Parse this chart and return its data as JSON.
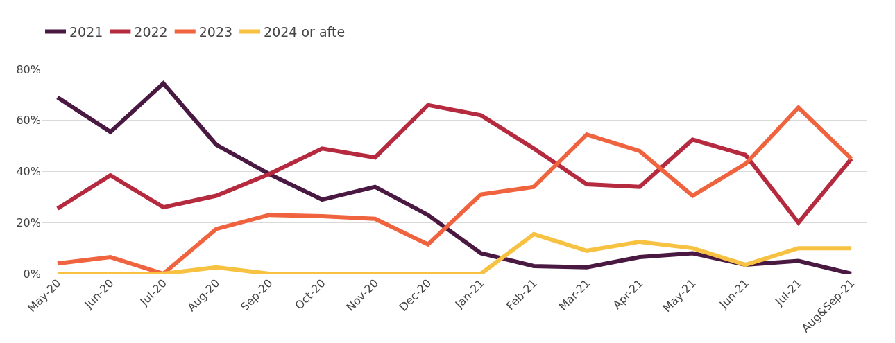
{
  "chart_data": {
    "type": "line",
    "categories": [
      "May-20",
      "Jun-20",
      "Jul-20",
      "Aug-20",
      "Sep-20",
      "Oct-20",
      "Nov-20",
      "Dec-20",
      "Jan-21",
      "Feb-21",
      "Mar-21",
      "Apr-21",
      "May-21",
      "Jun-21",
      "Jul-21",
      "Aug&Sep-21"
    ],
    "series": [
      {
        "name": "2021",
        "color": "#4a1942",
        "values": [
          69,
          55.5,
          74.5,
          50.5,
          39,
          29,
          34,
          23,
          8,
          3,
          2.5,
          6.5,
          8,
          3.5,
          5,
          0
        ]
      },
      {
        "name": "2022",
        "color": "#b52a3e",
        "values": [
          25.5,
          38.5,
          26,
          30.5,
          39,
          49,
          45.5,
          66,
          62,
          49,
          35,
          34,
          52.5,
          46.5,
          20,
          45
        ]
      },
      {
        "name": "2023",
        "color": "#f0633f",
        "values": [
          4,
          6.5,
          0,
          17.5,
          23,
          22.5,
          21.5,
          11.5,
          31,
          34,
          54.5,
          48,
          30.5,
          43,
          65,
          45
        ]
      },
      {
        "name": "2024 or afte",
        "color": "#f7c242",
        "values": [
          0,
          0,
          0,
          2.5,
          0,
          0,
          0,
          0,
          0,
          15.5,
          9,
          12.5,
          10,
          3.5,
          10,
          10
        ]
      }
    ],
    "ylim": [
      0,
      80
    ],
    "yticks": [
      {
        "value": 0,
        "label": "0%"
      },
      {
        "value": 20,
        "label": "20%"
      },
      {
        "value": 40,
        "label": "40%"
      },
      {
        "value": 60,
        "label": "60%"
      },
      {
        "value": 80,
        "label": "80%"
      }
    ],
    "grid": "y",
    "legend": "top left",
    "marker": "none",
    "line_style": "solid"
  }
}
